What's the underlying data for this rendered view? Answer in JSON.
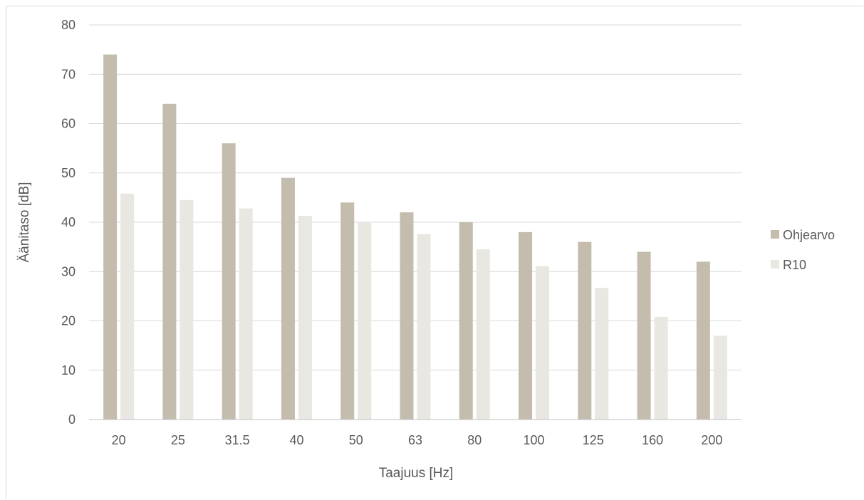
{
  "chart_data": {
    "type": "bar",
    "xlabel": "Taajuus [Hz]",
    "ylabel": "Äänitaso [dB]",
    "ylim": [
      0,
      80
    ],
    "yticks": [
      0,
      10,
      20,
      30,
      40,
      50,
      60,
      70,
      80
    ],
    "grid": true,
    "legend_position": "right",
    "categories": [
      "20",
      "25",
      "31.5",
      "40",
      "50",
      "63",
      "80",
      "100",
      "125",
      "160",
      "200"
    ],
    "series": [
      {
        "name": "Ohjearvo",
        "color": "#c4bdae",
        "values": [
          74,
          64,
          56,
          49,
          44,
          42,
          40,
          38,
          36,
          34,
          32
        ]
      },
      {
        "name": "R10",
        "color": "#e9e7e2",
        "values": [
          45.8,
          44.5,
          42.8,
          41.3,
          40.0,
          37.6,
          34.5,
          31.1,
          26.7,
          20.8,
          17.0
        ]
      }
    ]
  }
}
